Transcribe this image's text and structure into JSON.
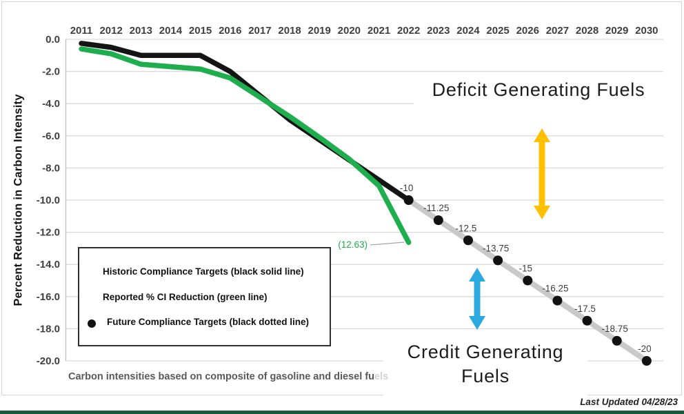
{
  "axis": {
    "y_title": "Percent Reduction in Carbon Intensity"
  },
  "legend": {
    "items": [
      {
        "label": "Historic Compliance Targets (black solid line)",
        "swatch": "black-solid-line"
      },
      {
        "label": "Reported % CI Reduction (green line)",
        "swatch": "green-solid-line"
      },
      {
        "label": "Future Compliance Targets (black dotted line)",
        "swatch": "gray-line-black-dot"
      }
    ]
  },
  "annotations": {
    "deficit_label": "Deficit Generating Fuels",
    "credit_label_line1": "Credit Generating",
    "credit_label_line2": "Fuels",
    "green_end_label": "(12.63)",
    "yellow_arrow_color": "#FFC000",
    "blue_arrow_color": "#2BA9E0"
  },
  "footer": {
    "note_main": "Carbon intensities based on composite of gasoline and diesel fu",
    "note_faded": "els",
    "last_updated": "Last Updated 04/28/23"
  },
  "chart_data": {
    "type": "line",
    "title": "",
    "xlabel": "",
    "ylabel": "Percent Reduction in Carbon Intensity",
    "x_years": [
      2011,
      2012,
      2013,
      2014,
      2015,
      2016,
      2017,
      2018,
      2019,
      2020,
      2021,
      2022,
      2023,
      2024,
      2025,
      2026,
      2027,
      2028,
      2029,
      2030
    ],
    "ylim": [
      -20,
      0
    ],
    "yticks": {
      "values": [
        0,
        -2,
        -4,
        -6,
        -8,
        -10,
        -12,
        -14,
        -16,
        -18,
        -20
      ],
      "labels": [
        "0.0",
        "-2.0",
        "-4.0",
        "-6.0",
        "-8.0",
        "-10.0",
        "-12.0",
        "-14.0",
        "-16.0",
        "-18.0",
        "-20.0"
      ]
    },
    "grid": true,
    "legend_position": "lower-left box",
    "series": [
      {
        "name": "Future Compliance Targets (black dotted line)",
        "color": "#c9c9c9",
        "marker_color": "#111111",
        "style": "thick gray line with black dots",
        "years": [
          2022,
          2023,
          2024,
          2025,
          2026,
          2027,
          2028,
          2029,
          2030
        ],
        "values": [
          -10,
          -11.25,
          -12.5,
          -13.75,
          -15,
          -16.25,
          -17.5,
          -18.75,
          -20
        ],
        "point_labels": [
          "-10",
          "-11.25",
          "-12.5",
          "-13.75",
          "-15",
          "-16.25",
          "-17.5",
          "-18.75",
          "-20"
        ]
      },
      {
        "name": "Historic Compliance Targets (black solid line)",
        "color": "#141414",
        "style": "solid",
        "years": [
          2011,
          2012,
          2013,
          2014,
          2015,
          2016,
          2017,
          2018,
          2019,
          2020,
          2021,
          2022
        ],
        "values": [
          -0.25,
          -0.5,
          -1.0,
          -1.0,
          -1.0,
          -2.0,
          -3.5,
          -5.0,
          -6.25,
          -7.5,
          -8.75,
          -10.0
        ]
      },
      {
        "name": "Reported % CI Reduction (green line)",
        "color": "#1eae4e",
        "style": "solid",
        "years": [
          2011,
          2012,
          2013,
          2014,
          2015,
          2016,
          2017,
          2018,
          2019,
          2020,
          2021,
          2022
        ],
        "values": [
          -0.6,
          -0.9,
          -1.55,
          -1.7,
          -1.85,
          -2.4,
          -3.6,
          -4.8,
          -6.1,
          -7.45,
          -9.1,
          -12.63
        ],
        "end_label": "(12.63)"
      }
    ]
  }
}
